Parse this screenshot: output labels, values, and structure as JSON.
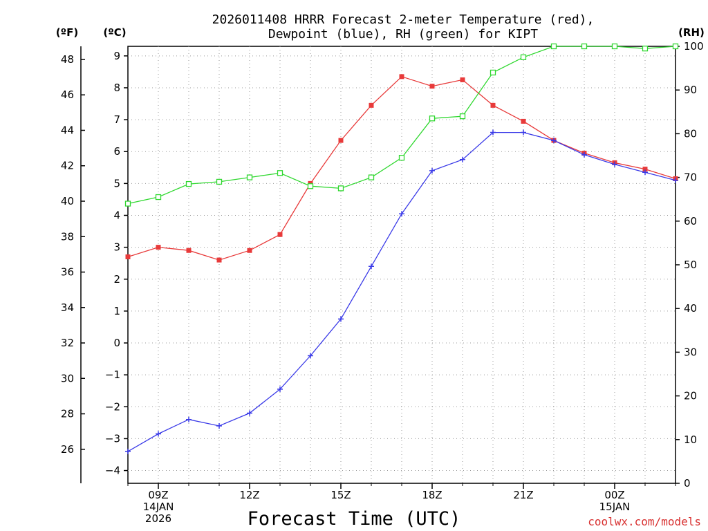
{
  "chart_data": {
    "type": "line",
    "title_line1": "2026011408 HRRR Forecast 2-meter Temperature (red),",
    "title_line2": "Dewpoint (blue), RH (green) for KIPT",
    "xlabel": "Forecast Time (UTC)",
    "watermark": "coolwx.com/models",
    "units": {
      "fahrenheit": "(ºF)",
      "celsius": "(ºC)",
      "rh": "(RH)"
    },
    "x_hours": [
      8,
      9,
      10,
      11,
      12,
      13,
      14,
      15,
      16,
      17,
      18,
      19,
      20,
      21,
      22,
      23,
      24,
      25,
      26
    ],
    "xlim": [
      8,
      26
    ],
    "x_ticks": [
      {
        "hour": 9,
        "lines": [
          "09Z",
          "14JAN",
          "2026"
        ]
      },
      {
        "hour": 12,
        "lines": [
          "12Z"
        ]
      },
      {
        "hour": 15,
        "lines": [
          "15Z"
        ]
      },
      {
        "hour": 18,
        "lines": [
          "18Z"
        ]
      },
      {
        "hour": 21,
        "lines": [
          "21Z"
        ]
      },
      {
        "hour": 24,
        "lines": [
          "00Z",
          "15JAN"
        ]
      }
    ],
    "celsius_axis": {
      "min": -4.4,
      "max": 9.3,
      "ticks": [
        -4,
        -3,
        -2,
        -1,
        0,
        1,
        2,
        3,
        4,
        5,
        6,
        7,
        8,
        9
      ],
      "labels": [
        "−4",
        "−3",
        "−2",
        "−1",
        "0",
        "1",
        "2",
        "3",
        "4",
        "5",
        "6",
        "7",
        "8",
        "9"
      ]
    },
    "fahrenheit_axis": {
      "ticks": [
        26,
        28,
        30,
        32,
        34,
        36,
        38,
        40,
        42,
        44,
        46,
        48
      ]
    },
    "rh_axis": {
      "min": 0,
      "max": 100,
      "ticks": [
        0,
        10,
        20,
        30,
        40,
        50,
        60,
        70,
        80,
        90,
        100
      ]
    },
    "series": [
      {
        "name": "2-meter Temperature",
        "axis": "celsius",
        "color": "#e83a3a",
        "marker": "filled-square",
        "values": [
          2.7,
          3.0,
          2.9,
          2.6,
          2.9,
          3.4,
          5.0,
          6.35,
          7.45,
          8.35,
          8.05,
          8.25,
          7.45,
          6.95,
          6.35,
          5.95,
          5.65,
          5.45,
          5.15
        ]
      },
      {
        "name": "Dewpoint",
        "axis": "celsius",
        "color": "#3a3ae8",
        "marker": "plus",
        "values": [
          -3.4,
          -2.85,
          -2.4,
          -2.6,
          -2.2,
          -1.45,
          -0.4,
          0.75,
          2.4,
          4.05,
          5.4,
          5.75,
          6.6,
          6.6,
          6.35,
          5.9,
          5.6,
          5.35,
          5.1
        ]
      },
      {
        "name": "RH",
        "axis": "rh",
        "color": "#30d830",
        "marker": "open-square",
        "values": [
          64,
          65.5,
          68.5,
          69,
          70,
          71,
          68,
          67.5,
          70,
          74.5,
          83.5,
          84,
          94,
          97.5,
          100,
          100,
          100,
          99.5,
          100
        ]
      }
    ]
  }
}
